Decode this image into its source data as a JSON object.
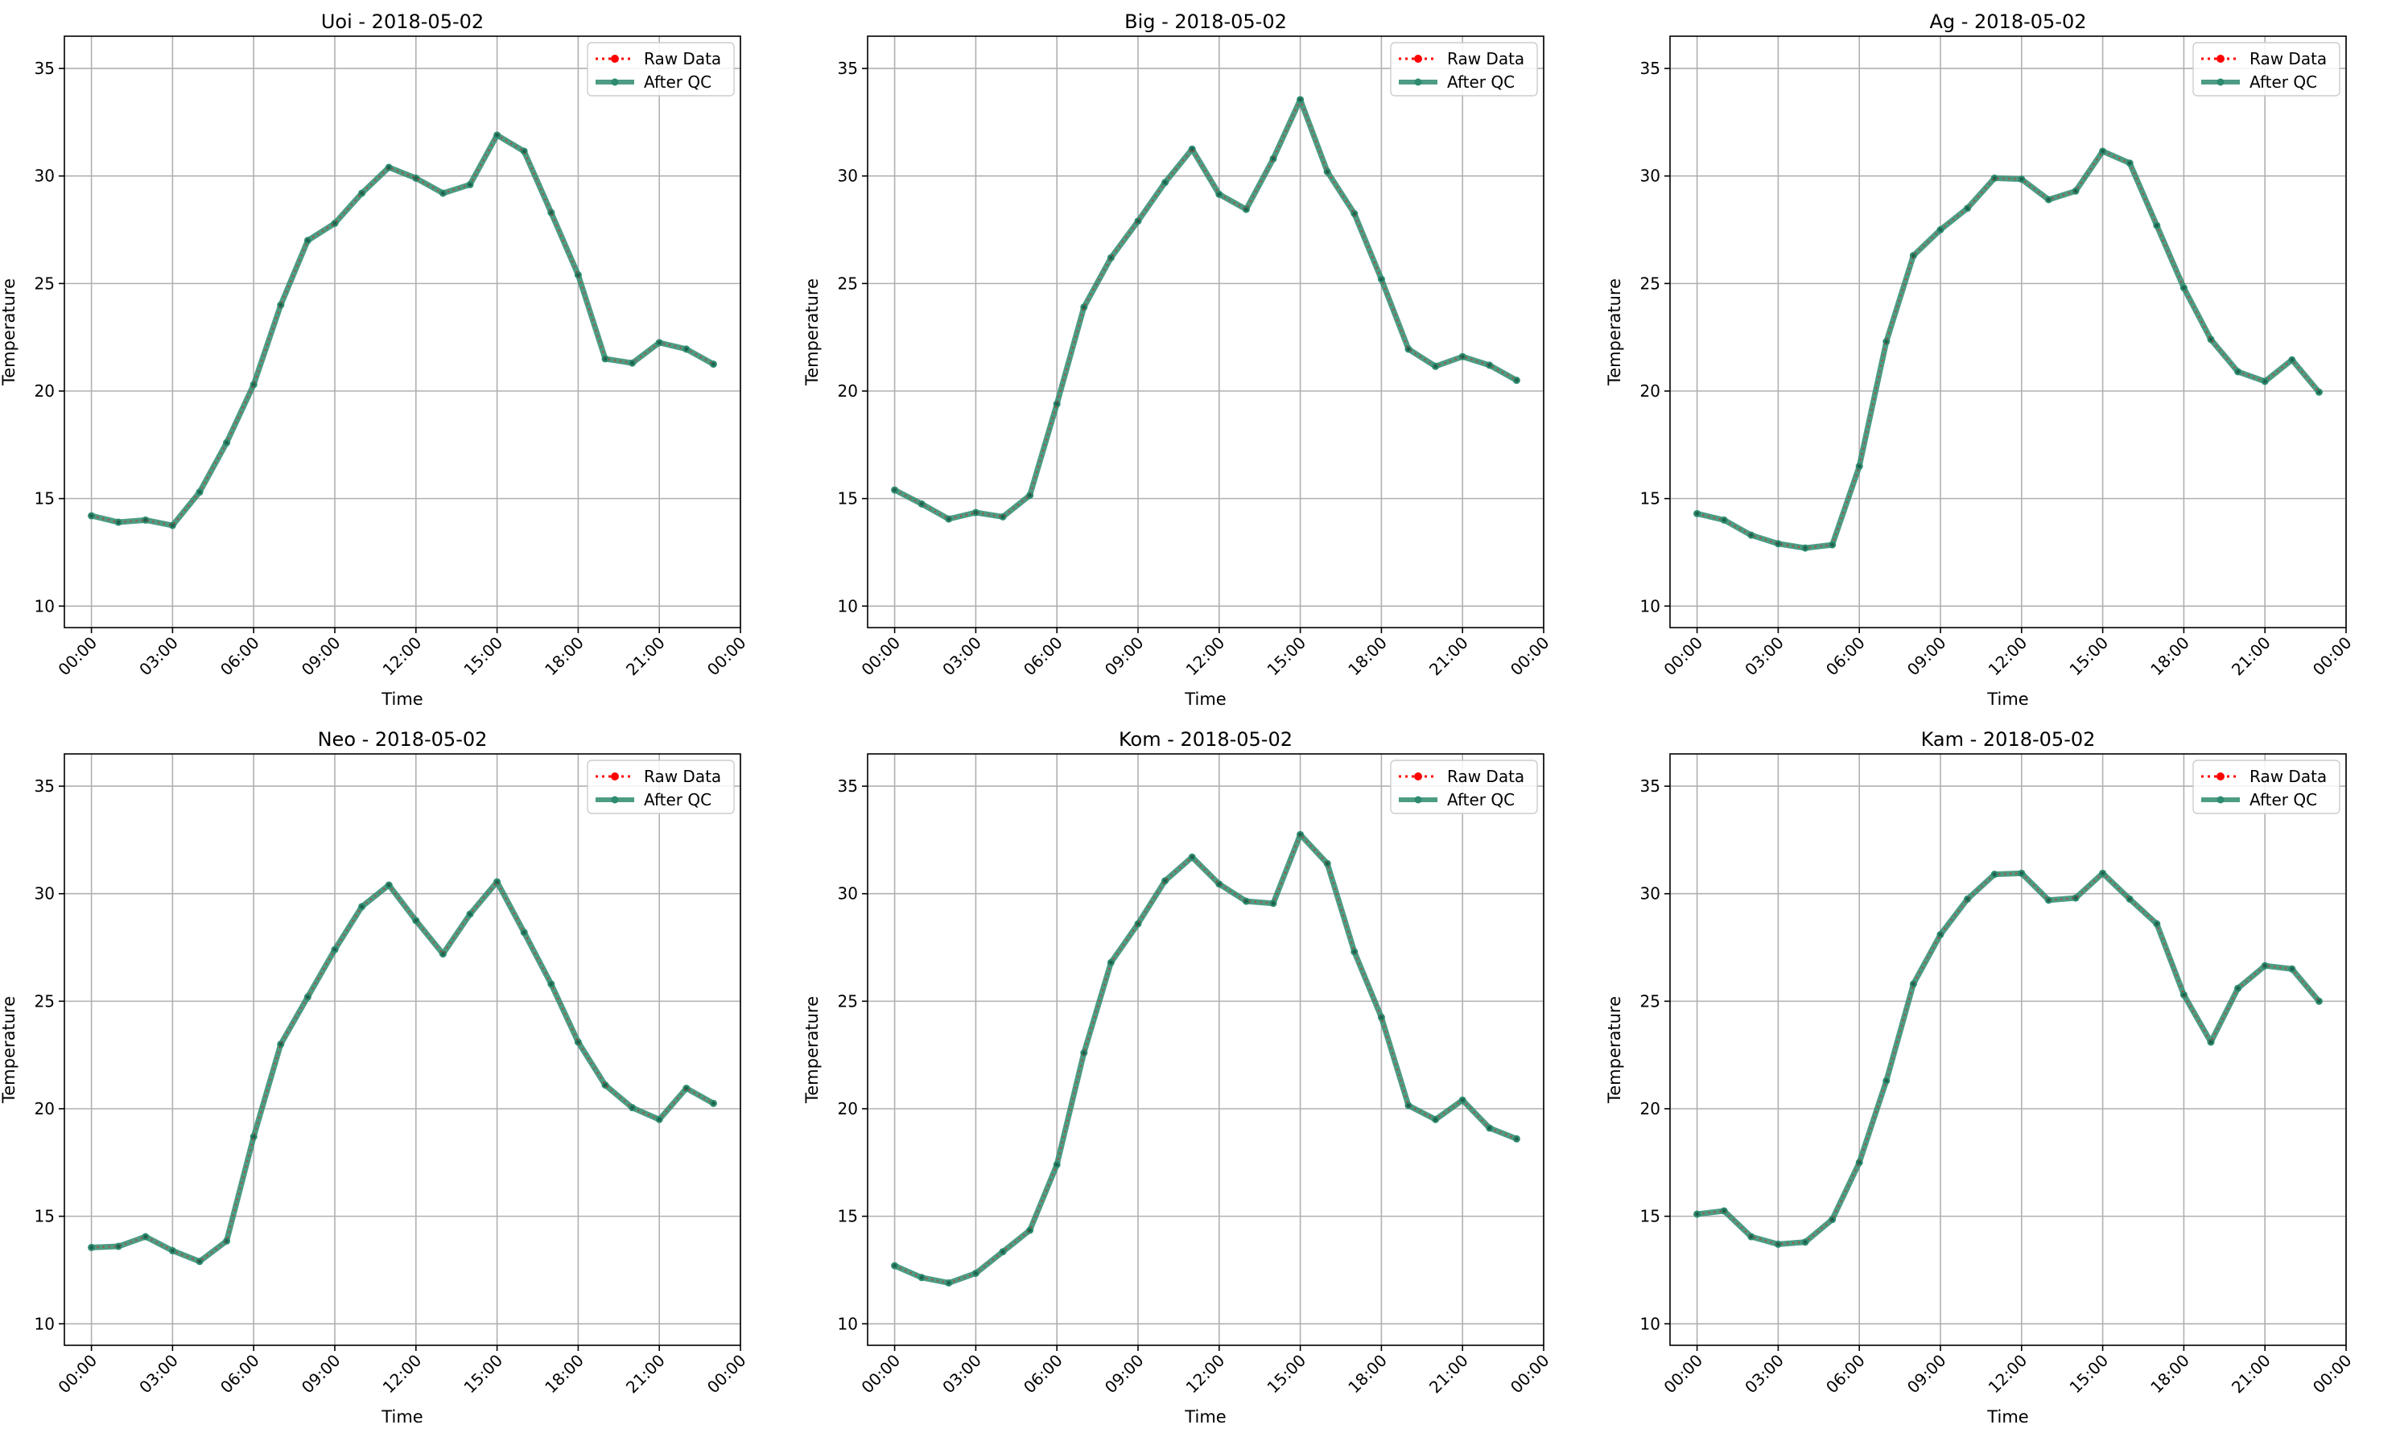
{
  "figure": {
    "legend_raw_label": "Raw Data",
    "legend_qc_label": "After QC",
    "raw_color": "#ff0000",
    "qc_color": "#2e8b6f",
    "grid_color": "#b0b0b0"
  },
  "chart_data": [
    {
      "type": "line",
      "title": "Uoi - 2018-05-02",
      "xlabel": "Time",
      "ylabel": "Temperature",
      "ylim": [
        9,
        36.5
      ],
      "yticks": [
        10,
        15,
        20,
        25,
        30,
        35
      ],
      "xlim": [
        -1,
        24
      ],
      "xticks": [
        "00:00",
        "03:00",
        "06:00",
        "09:00",
        "12:00",
        "15:00",
        "18:00",
        "21:00",
        "00:00"
      ],
      "grid": true,
      "legend_position": "top-right",
      "x": [
        "00:00",
        "01:00",
        "02:00",
        "03:00",
        "04:00",
        "05:00",
        "06:00",
        "07:00",
        "08:00",
        "09:00",
        "10:00",
        "11:00",
        "12:00",
        "13:00",
        "14:00",
        "15:00",
        "16:00",
        "17:00",
        "18:00",
        "19:00",
        "20:00",
        "21:00",
        "22:00",
        "23:00"
      ],
      "series": [
        {
          "name": "Raw Data",
          "values": [
            14.2,
            13.9,
            14.0,
            13.75,
            15.3,
            17.6,
            20.3,
            24.0,
            27.0,
            27.8,
            29.2,
            30.4,
            29.9,
            29.2,
            29.6,
            31.9,
            31.15,
            28.3,
            25.4,
            21.5,
            21.3,
            22.25,
            21.95,
            21.25
          ]
        },
        {
          "name": "After QC",
          "values": [
            14.2,
            13.9,
            14.0,
            13.75,
            15.3,
            17.6,
            20.3,
            24.0,
            27.0,
            27.8,
            29.2,
            30.4,
            29.9,
            29.2,
            29.6,
            31.9,
            31.15,
            28.3,
            25.4,
            21.5,
            21.3,
            22.25,
            21.95,
            21.25
          ]
        }
      ]
    },
    {
      "type": "line",
      "title": "Big - 2018-05-02",
      "xlabel": "Time",
      "ylabel": "Temperature",
      "ylim": [
        9,
        36.5
      ],
      "yticks": [
        10,
        15,
        20,
        25,
        30,
        35
      ],
      "xlim": [
        -1,
        24
      ],
      "xticks": [
        "00:00",
        "03:00",
        "06:00",
        "09:00",
        "12:00",
        "15:00",
        "18:00",
        "21:00",
        "00:00"
      ],
      "grid": true,
      "legend_position": "top-right",
      "x": [
        "00:00",
        "01:00",
        "02:00",
        "03:00",
        "04:00",
        "05:00",
        "06:00",
        "07:00",
        "08:00",
        "09:00",
        "10:00",
        "11:00",
        "12:00",
        "13:00",
        "14:00",
        "15:00",
        "16:00",
        "17:00",
        "18:00",
        "19:00",
        "20:00",
        "21:00",
        "22:00",
        "23:00"
      ],
      "series": [
        {
          "name": "Raw Data",
          "values": [
            15.4,
            14.75,
            14.05,
            14.35,
            14.15,
            15.15,
            19.4,
            23.9,
            26.2,
            27.9,
            29.7,
            31.25,
            29.15,
            28.45,
            30.8,
            33.55,
            30.2,
            28.25,
            25.2,
            21.95,
            21.15,
            21.6,
            21.2,
            20.5
          ]
        },
        {
          "name": "After QC",
          "values": [
            15.4,
            14.75,
            14.05,
            14.35,
            14.15,
            15.15,
            19.4,
            23.9,
            26.2,
            27.9,
            29.7,
            31.25,
            29.15,
            28.45,
            30.8,
            33.55,
            30.2,
            28.25,
            25.2,
            21.95,
            21.15,
            21.6,
            21.2,
            20.5
          ]
        }
      ]
    },
    {
      "type": "line",
      "title": "Ag - 2018-05-02",
      "xlabel": "Time",
      "ylabel": "Temperature",
      "ylim": [
        9,
        36.5
      ],
      "yticks": [
        10,
        15,
        20,
        25,
        30,
        35
      ],
      "xlim": [
        -1,
        24
      ],
      "xticks": [
        "00:00",
        "03:00",
        "06:00",
        "09:00",
        "12:00",
        "15:00",
        "18:00",
        "21:00",
        "00:00"
      ],
      "grid": true,
      "legend_position": "top-right",
      "x": [
        "00:00",
        "01:00",
        "02:00",
        "03:00",
        "04:00",
        "05:00",
        "06:00",
        "07:00",
        "08:00",
        "09:00",
        "10:00",
        "11:00",
        "12:00",
        "13:00",
        "14:00",
        "15:00",
        "16:00",
        "17:00",
        "18:00",
        "19:00",
        "20:00",
        "21:00",
        "22:00",
        "23:00"
      ],
      "series": [
        {
          "name": "Raw Data",
          "values": [
            14.3,
            14.0,
            13.3,
            12.9,
            12.7,
            12.85,
            16.5,
            22.3,
            26.3,
            27.5,
            28.5,
            29.9,
            29.85,
            28.9,
            29.3,
            31.15,
            30.6,
            27.7,
            24.8,
            22.4,
            20.9,
            20.45,
            21.45,
            19.95
          ]
        },
        {
          "name": "After QC",
          "values": [
            14.3,
            14.0,
            13.3,
            12.9,
            12.7,
            12.85,
            16.5,
            22.3,
            26.3,
            27.5,
            28.5,
            29.9,
            29.85,
            28.9,
            29.3,
            31.15,
            30.6,
            27.7,
            24.8,
            22.4,
            20.9,
            20.45,
            21.45,
            19.95
          ]
        }
      ]
    },
    {
      "type": "line",
      "title": "Neo - 2018-05-02",
      "xlabel": "Time",
      "ylabel": "Temperature",
      "ylim": [
        9,
        36.5
      ],
      "yticks": [
        10,
        15,
        20,
        25,
        30,
        35
      ],
      "xlim": [
        -1,
        24
      ],
      "xticks": [
        "00:00",
        "03:00",
        "06:00",
        "09:00",
        "12:00",
        "15:00",
        "18:00",
        "21:00",
        "00:00"
      ],
      "grid": true,
      "legend_position": "top-right",
      "x": [
        "00:00",
        "01:00",
        "02:00",
        "03:00",
        "04:00",
        "05:00",
        "06:00",
        "07:00",
        "08:00",
        "09:00",
        "10:00",
        "11:00",
        "12:00",
        "13:00",
        "14:00",
        "15:00",
        "16:00",
        "17:00",
        "18:00",
        "19:00",
        "20:00",
        "21:00",
        "22:00",
        "23:00"
      ],
      "series": [
        {
          "name": "Raw Data",
          "values": [
            13.55,
            13.6,
            14.05,
            13.4,
            12.9,
            13.85,
            18.7,
            23.0,
            25.2,
            27.4,
            29.4,
            30.4,
            28.75,
            27.2,
            29.05,
            30.55,
            28.2,
            25.8,
            23.1,
            21.1,
            20.05,
            19.5,
            20.95,
            20.25
          ]
        },
        {
          "name": "After QC",
          "values": [
            13.55,
            13.6,
            14.05,
            13.4,
            12.9,
            13.85,
            18.7,
            23.0,
            25.2,
            27.4,
            29.4,
            30.4,
            28.75,
            27.2,
            29.05,
            30.55,
            28.2,
            25.8,
            23.1,
            21.1,
            20.05,
            19.5,
            20.95,
            20.25
          ]
        }
      ]
    },
    {
      "type": "line",
      "title": "Kom - 2018-05-02",
      "xlabel": "Time",
      "ylabel": "Temperature",
      "ylim": [
        9,
        36.5
      ],
      "yticks": [
        10,
        15,
        20,
        25,
        30,
        35
      ],
      "xlim": [
        -1,
        24
      ],
      "xticks": [
        "00:00",
        "03:00",
        "06:00",
        "09:00",
        "12:00",
        "15:00",
        "18:00",
        "21:00",
        "00:00"
      ],
      "grid": true,
      "legend_position": "top-right",
      "x": [
        "00:00",
        "01:00",
        "02:00",
        "03:00",
        "04:00",
        "05:00",
        "06:00",
        "07:00",
        "08:00",
        "09:00",
        "10:00",
        "11:00",
        "12:00",
        "13:00",
        "14:00",
        "15:00",
        "16:00",
        "17:00",
        "18:00",
        "19:00",
        "20:00",
        "21:00",
        "22:00",
        "23:00"
      ],
      "series": [
        {
          "name": "Raw Data",
          "values": [
            12.7,
            12.15,
            11.9,
            12.35,
            13.35,
            14.35,
            17.4,
            22.6,
            26.8,
            28.6,
            30.6,
            31.7,
            30.45,
            29.65,
            29.55,
            32.75,
            31.4,
            27.3,
            24.25,
            20.15,
            19.5,
            20.4,
            19.1,
            18.6
          ]
        },
        {
          "name": "After QC",
          "values": [
            12.7,
            12.15,
            11.9,
            12.35,
            13.35,
            14.35,
            17.4,
            22.6,
            26.8,
            28.6,
            30.6,
            31.7,
            30.45,
            29.65,
            29.55,
            32.75,
            31.4,
            27.3,
            24.25,
            20.15,
            19.5,
            20.4,
            19.1,
            18.6
          ]
        }
      ]
    },
    {
      "type": "line",
      "title": "Kam - 2018-05-02",
      "xlabel": "Time",
      "ylabel": "Temperature",
      "ylim": [
        9,
        36.5
      ],
      "yticks": [
        10,
        15,
        20,
        25,
        30,
        35
      ],
      "xlim": [
        -1,
        24
      ],
      "xticks": [
        "00:00",
        "03:00",
        "06:00",
        "09:00",
        "12:00",
        "15:00",
        "18:00",
        "21:00",
        "00:00"
      ],
      "grid": true,
      "legend_position": "top-right",
      "x": [
        "00:00",
        "01:00",
        "02:00",
        "03:00",
        "04:00",
        "05:00",
        "06:00",
        "07:00",
        "08:00",
        "09:00",
        "10:00",
        "11:00",
        "12:00",
        "13:00",
        "14:00",
        "15:00",
        "16:00",
        "17:00",
        "18:00",
        "19:00",
        "20:00",
        "21:00",
        "22:00",
        "23:00"
      ],
      "series": [
        {
          "name": "Raw Data",
          "values": [
            15.1,
            15.25,
            14.05,
            13.7,
            13.8,
            14.85,
            17.5,
            21.3,
            25.8,
            28.1,
            29.75,
            30.9,
            30.95,
            29.7,
            29.8,
            30.95,
            29.75,
            28.6,
            25.3,
            23.1,
            25.6,
            26.65,
            26.5,
            25.0
          ]
        },
        {
          "name": "After QC",
          "values": [
            15.1,
            15.25,
            14.05,
            13.7,
            13.8,
            14.85,
            17.5,
            21.3,
            25.8,
            28.1,
            29.75,
            30.9,
            30.95,
            29.7,
            29.8,
            30.95,
            29.75,
            28.6,
            25.3,
            23.1,
            25.6,
            26.65,
            26.5,
            25.0
          ]
        }
      ]
    }
  ]
}
